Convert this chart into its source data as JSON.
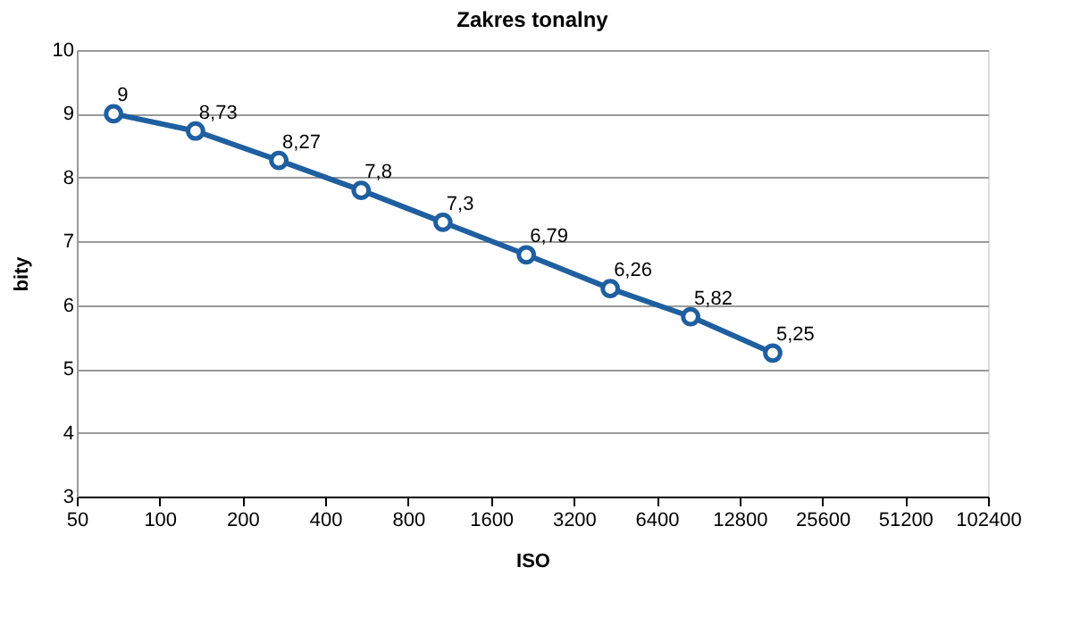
{
  "chart_data": {
    "type": "line",
    "title": "Zakres tonalny",
    "xlabel": "ISO",
    "ylabel": "bity",
    "x": [
      68,
      135,
      271,
      540,
      1070,
      2150,
      4340,
      8500,
      16900
    ],
    "series": [
      {
        "color": "#1f5fa0",
        "values": [
          9,
          8.73,
          8.27,
          7.8,
          7.3,
          6.79,
          6.26,
          5.82,
          5.25
        ],
        "value_labels": [
          "9",
          "8,73",
          "8,27",
          "7,8",
          "7,3",
          "6,79",
          "6,26",
          "5,82",
          "5,25"
        ]
      }
    ],
    "log": "x",
    "xlim": [
      50,
      102400
    ],
    "xticks": [
      50,
      100,
      200,
      400,
      800,
      1600,
      3200,
      6400,
      12800,
      25600,
      51200,
      102400
    ],
    "ylim": [
      3,
      10
    ],
    "yticks": [
      3,
      4,
      5,
      6,
      7,
      8,
      9,
      10
    ],
    "grid": "y",
    "marker": "circle",
    "line_style": "solid"
  }
}
